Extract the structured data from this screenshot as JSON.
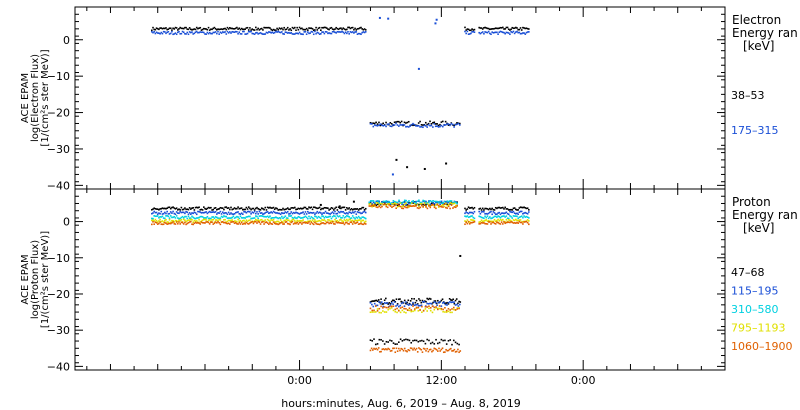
{
  "chart_data": [
    {
      "type": "scatter",
      "panel": "electron",
      "title": "",
      "ylabel": [
        "ACE EPAM",
        "log(Electron Flux)",
        "[1/(cm²s ster MeV)]"
      ],
      "legend_title": [
        "Electron",
        "Energy ran",
        "[keV]"
      ],
      "legend_placement": "right",
      "ylim": [
        -41,
        9
      ],
      "yticks": [
        0,
        -10,
        -20,
        -30,
        -40
      ],
      "ytick_labels": [
        "0",
        "−10",
        "−20",
        "−30",
        "−40"
      ],
      "series": [
        {
          "name": "38–53",
          "color": "#000000",
          "segments": [
            {
              "x0": -12.5,
              "x1": 5.6,
              "y": 3.0,
              "jitter": 0.4,
              "step": 0.1
            },
            {
              "x0": 6.0,
              "x1": 13.6,
              "y": -23.0,
              "jitter": 0.6,
              "step": 0.12
            },
            {
              "x0": 14.0,
              "x1": 14.8,
              "y": 3.0,
              "jitter": 0.4,
              "step": 0.1
            },
            {
              "x0": 15.2,
              "x1": 19.5,
              "y": 3.0,
              "jitter": 0.4,
              "step": 0.1
            }
          ],
          "points": [
            {
              "x": 8.2,
              "y": -33
            },
            {
              "x": 9.1,
              "y": -35
            },
            {
              "x": 10.6,
              "y": -35.5
            },
            {
              "x": 12.4,
              "y": -34
            }
          ]
        },
        {
          "name": "175–315",
          "color": "#1a4fd6",
          "segments": [
            {
              "x0": -12.5,
              "x1": 5.6,
              "y": 1.9,
              "jitter": 0.4,
              "step": 0.1
            },
            {
              "x0": 6.0,
              "x1": 13.6,
              "y": -23.5,
              "jitter": 0.6,
              "step": 0.12
            },
            {
              "x0": 14.0,
              "x1": 14.8,
              "y": 1.9,
              "jitter": 0.4,
              "step": 0.1
            },
            {
              "x0": 15.2,
              "x1": 19.5,
              "y": 1.9,
              "jitter": 0.4,
              "step": 0.1
            }
          ],
          "points": [
            {
              "x": 6.8,
              "y": 6.0
            },
            {
              "x": 7.5,
              "y": 5.8
            },
            {
              "x": 11.6,
              "y": 5.5
            },
            {
              "x": 11.5,
              "y": 4.5
            },
            {
              "x": 10.1,
              "y": -8
            },
            {
              "x": 7.9,
              "y": -37
            }
          ]
        }
      ]
    },
    {
      "type": "scatter",
      "panel": "proton",
      "title": "",
      "ylabel": [
        "ACE EPAM",
        "log(Proton Flux)",
        "[1/(cm²s ster MeV)]"
      ],
      "legend_title": [
        "Proton",
        "Energy ran",
        "[keV]"
      ],
      "legend_placement": "right",
      "ylim": [
        -41,
        9
      ],
      "yticks": [
        0,
        -10,
        -20,
        -30,
        -40
      ],
      "ytick_labels": [
        "0",
        "−10",
        "−20",
        "−30",
        "−40"
      ],
      "series": [
        {
          "name": "47–68",
          "color": "#000000",
          "segments": [
            {
              "x0": -12.5,
              "x1": 5.6,
              "y": 3.6,
              "jitter": 0.4,
              "step": 0.1
            },
            {
              "x0": 5.9,
              "x1": 13.4,
              "y": 5.0,
              "jitter": 0.5,
              "step": 0.12
            },
            {
              "x0": 14.0,
              "x1": 14.8,
              "y": 3.6,
              "jitter": 0.4,
              "step": 0.1
            },
            {
              "x0": 15.2,
              "x1": 19.5,
              "y": 3.6,
              "jitter": 0.4,
              "step": 0.1
            },
            {
              "x0": 6.0,
              "x1": 13.6,
              "y": -22.0,
              "jitter": 0.8,
              "step": 0.1
            },
            {
              "x0": 6.0,
              "x1": 13.6,
              "y": -33.2,
              "jitter": 0.8,
              "step": 0.15
            }
          ],
          "points": [
            {
              "x": 13.6,
              "y": -9.5
            },
            {
              "x": 4.6,
              "y": 5.5
            },
            {
              "x": 1.8,
              "y": 4.6
            },
            {
              "x": 3.4,
              "y": 4.2
            }
          ]
        },
        {
          "name": "115–195",
          "color": "#1a4fd6",
          "segments": [
            {
              "x0": -12.5,
              "x1": 5.6,
              "y": 2.4,
              "jitter": 0.4,
              "step": 0.1
            },
            {
              "x0": 5.9,
              "x1": 13.4,
              "y": 5.2,
              "jitter": 0.5,
              "step": 0.12
            },
            {
              "x0": 14.0,
              "x1": 14.8,
              "y": 2.4,
              "jitter": 0.4,
              "step": 0.1
            },
            {
              "x0": 15.2,
              "x1": 19.5,
              "y": 2.4,
              "jitter": 0.4,
              "step": 0.1
            },
            {
              "x0": 6.0,
              "x1": 13.6,
              "y": -22.8,
              "jitter": 0.7,
              "step": 0.12
            }
          ],
          "points": []
        },
        {
          "name": "310–580",
          "color": "#00d0e0",
          "segments": [
            {
              "x0": -12.5,
              "x1": 5.6,
              "y": 1.2,
              "jitter": 0.4,
              "step": 0.1
            },
            {
              "x0": 5.9,
              "x1": 13.4,
              "y": 5.4,
              "jitter": 0.5,
              "step": 0.12
            },
            {
              "x0": 14.0,
              "x1": 14.8,
              "y": 1.2,
              "jitter": 0.4,
              "step": 0.1
            },
            {
              "x0": 15.2,
              "x1": 19.5,
              "y": 1.2,
              "jitter": 0.4,
              "step": 0.1
            }
          ],
          "points": []
        },
        {
          "name": "795–1193",
          "color": "#e0e000",
          "segments": [
            {
              "x0": -12.5,
              "x1": 5.6,
              "y": 0.2,
              "jitter": 0.4,
              "step": 0.1
            },
            {
              "x0": 5.9,
              "x1": 13.4,
              "y": 4.6,
              "jitter": 0.6,
              "step": 0.12
            },
            {
              "x0": 14.0,
              "x1": 14.8,
              "y": 0.2,
              "jitter": 0.4,
              "step": 0.1
            },
            {
              "x0": 15.2,
              "x1": 19.5,
              "y": 0.2,
              "jitter": 0.4,
              "step": 0.1
            },
            {
              "x0": 6.0,
              "x1": 13.6,
              "y": -24.5,
              "jitter": 0.7,
              "step": 0.15
            }
          ],
          "points": []
        },
        {
          "name": "1060–1900",
          "color": "#e06000",
          "segments": [
            {
              "x0": -12.5,
              "x1": 5.6,
              "y": -0.4,
              "jitter": 0.4,
              "step": 0.1
            },
            {
              "x0": 5.9,
              "x1": 13.4,
              "y": 4.2,
              "jitter": 0.6,
              "step": 0.12
            },
            {
              "x0": 14.0,
              "x1": 14.8,
              "y": -0.4,
              "jitter": 0.4,
              "step": 0.1
            },
            {
              "x0": 15.2,
              "x1": 19.5,
              "y": -0.4,
              "jitter": 0.4,
              "step": 0.1
            },
            {
              "x0": 6.0,
              "x1": 13.6,
              "y": -24.0,
              "jitter": 0.7,
              "step": 0.15
            },
            {
              "x0": 6.0,
              "x1": 13.6,
              "y": -35.5,
              "jitter": 0.6,
              "step": 0.1
            }
          ],
          "points": []
        }
      ]
    }
  ],
  "x_axis": {
    "units": "hours relative to 0:00 Aug. 7, 2019",
    "xlim": [
      -19,
      36
    ],
    "major_ticks": [
      0,
      12,
      24
    ],
    "major_tick_labels": [
      "0:00",
      "12:00",
      "0:00"
    ],
    "minor_step": 2,
    "label": "hours:minutes, Aug.  6, 2019 – Aug.  8, 2019"
  }
}
